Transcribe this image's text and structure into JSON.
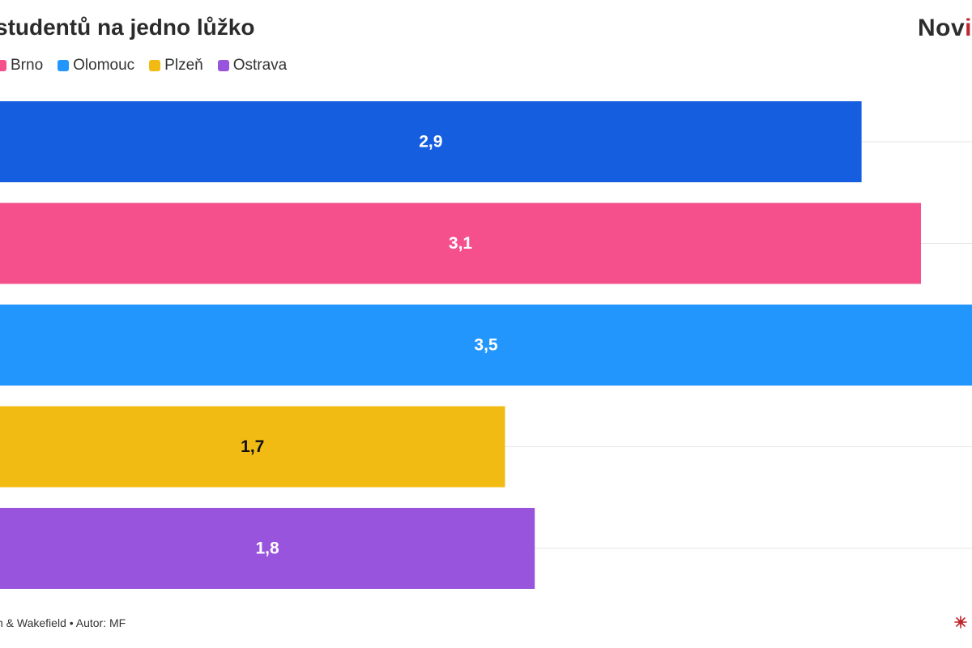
{
  "header": {
    "title": "studentů na jedno lůžko",
    "brand_main": "Nov",
    "brand_accent": "i"
  },
  "footer": {
    "source": "n & Wakefield • Autor: MF"
  },
  "colors": {
    "praha": "#155ee0",
    "brno": "#f5508b",
    "olomouc": "#2396fd",
    "plzen": "#f2bb14",
    "ostrava": "#9854dc",
    "gridline": "#e6e6e6",
    "brand_accent": "#c0262d"
  },
  "chart_data": {
    "type": "bar",
    "orientation": "horizontal",
    "title": "studentů na jedno lůžko",
    "legend": [
      {
        "name": "Brno",
        "color": "#f5508b"
      },
      {
        "name": "Olomouc",
        "color": "#2396fd"
      },
      {
        "name": "Plzeň",
        "color": "#f2bb14"
      },
      {
        "name": "Ostrava",
        "color": "#9854dc"
      }
    ],
    "legend_position": "top-left",
    "bars": [
      {
        "value": 2.9,
        "label": "2,9",
        "color": "#155ee0",
        "label_color": "#ffffff"
      },
      {
        "value": 3.1,
        "label": "3,1",
        "color": "#f5508b",
        "label_color": "#ffffff"
      },
      {
        "value": 3.5,
        "label": "3,5",
        "color": "#2396fd",
        "label_color": "#ffffff"
      },
      {
        "value": 1.7,
        "label": "1,7",
        "color": "#f2bb14",
        "label_color": "#111111"
      },
      {
        "value": 1.8,
        "label": "1,8",
        "color": "#9854dc",
        "label_color": "#ffffff"
      }
    ],
    "grid": true
  }
}
